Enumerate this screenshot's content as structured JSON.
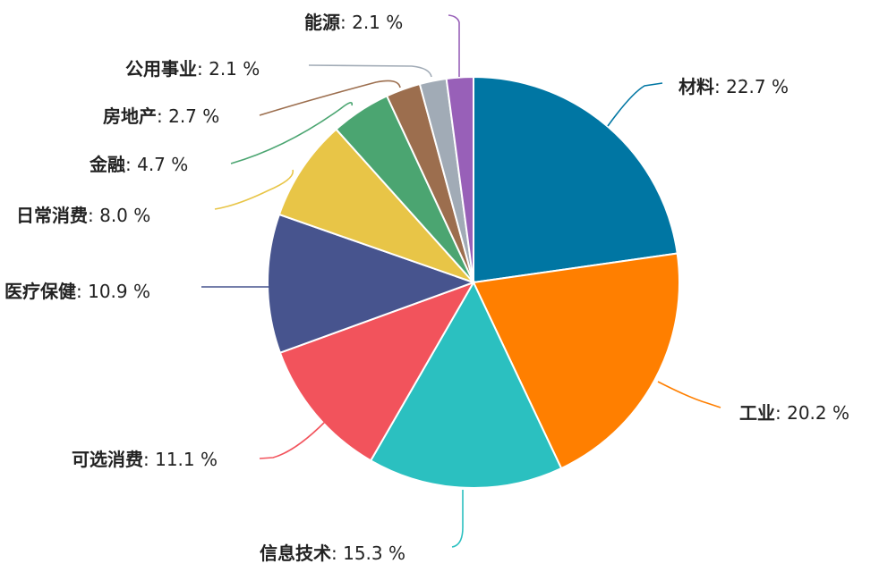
{
  "chart_data": {
    "type": "pie",
    "title": "",
    "slices": [
      {
        "name": "材料",
        "value": 22.7,
        "display": ": 22.7 %",
        "color": "#0076A3"
      },
      {
        "name": "工业",
        "value": 20.2,
        "display": ": 20.2 %",
        "color": "#FF7F00"
      },
      {
        "name": "信息技术",
        "value": 15.3,
        "display": ": 15.3 %",
        "color": "#2BC0C0"
      },
      {
        "name": "可选消费",
        "value": 11.1,
        "display": ": 11.1 %",
        "color": "#F2535C"
      },
      {
        "name": "医疗保健",
        "value": 10.9,
        "display": ": 10.9 %",
        "color": "#47548E"
      },
      {
        "name": "日常消费",
        "value": 8.0,
        "display": ": 8.0 %",
        "color": "#E8C547"
      },
      {
        "name": "金融",
        "value": 4.7,
        "display": ": 4.7 %",
        "color": "#4BA571"
      },
      {
        "name": "房地产",
        "value": 2.7,
        "display": ": 2.7 %",
        "color": "#9C6E4E"
      },
      {
        "name": "公用事业",
        "value": 2.1,
        "display": ": 2.1 %",
        "color": "#A1ABB6"
      },
      {
        "name": "能源",
        "value": 2.1,
        "display": ": 2.1 %",
        "color": "#9860B8"
      }
    ]
  }
}
